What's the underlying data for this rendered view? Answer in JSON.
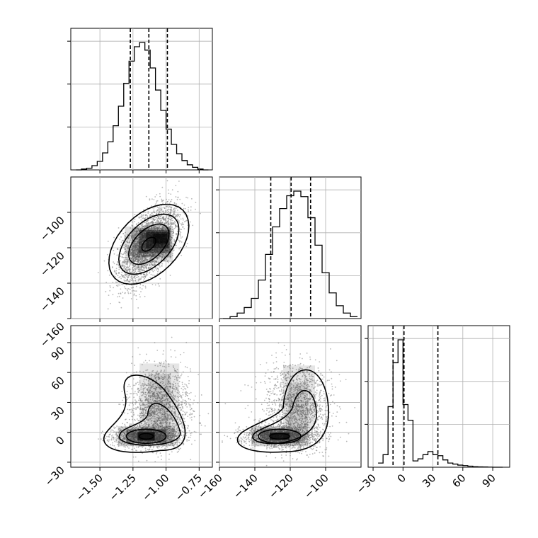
{
  "chart_data": {
    "type": "corner",
    "colors": {
      "line": "#000000",
      "grid": "#b0b0b0",
      "points": "#7f7f7f"
    },
    "grid": true,
    "parameters": [
      {
        "ticks": [
          -1.5,
          -1.25,
          -1.0,
          -0.75
        ],
        "tick_labels": [
          "−1.50",
          "−1.25",
          "−1.00",
          "−0.75"
        ],
        "range": [
          -1.72,
          -0.65
        ],
        "quantiles": [
          -1.27,
          -1.13,
          -0.99
        ]
      },
      {
        "ticks": [
          -160,
          -140,
          -120,
          -100
        ],
        "tick_labels": [
          "−160",
          "−140",
          "−120",
          "−100"
        ],
        "range": [
          -160,
          -80
        ],
        "quantiles": [
          -131,
          -119.5,
          -108.5
        ]
      },
      {
        "ticks": [
          -30,
          0,
          30,
          60,
          90
        ],
        "tick_labels": [
          "−30",
          "0",
          "30",
          "60",
          "90"
        ],
        "range": [
          -35,
          107
        ],
        "quantiles": [
          -10,
          1,
          35
        ]
      }
    ],
    "histograms": [
      {
        "param": 0,
        "bins": [
          -1.68,
          -1.64,
          -1.6,
          -1.56,
          -1.52,
          -1.48,
          -1.44,
          -1.4,
          -1.36,
          -1.32,
          -1.28,
          -1.24,
          -1.2,
          -1.16,
          -1.12,
          -1.08,
          -1.04,
          -1.0,
          -0.96,
          -0.92,
          -0.88,
          -0.84,
          -0.8,
          -0.76,
          -0.72,
          -0.68
        ],
        "counts": [
          0,
          1,
          2,
          5,
          10,
          20,
          33,
          52,
          75,
          102,
          128,
          145,
          150,
          141,
          120,
          94,
          70,
          48,
          30,
          19,
          11,
          6,
          3,
          1,
          0
        ]
      },
      {
        "param": 1,
        "bins": [
          -158,
          -154,
          -150,
          -146,
          -142,
          -138,
          -134,
          -130,
          -126,
          -122,
          -118,
          -114,
          -110,
          -106,
          -102,
          -98,
          -94,
          -90,
          -86,
          -82
        ],
        "counts": [
          0,
          2,
          6,
          12,
          22,
          42,
          70,
          100,
          120,
          134,
          139,
          133,
          110,
          80,
          50,
          28,
          14,
          6,
          2
        ]
      },
      {
        "param": 2,
        "bins": [
          -25,
          -20,
          -15,
          -10,
          -5,
          0,
          5,
          10,
          15,
          20,
          25,
          30,
          35,
          40,
          45,
          50,
          55,
          60,
          65,
          70,
          75,
          80,
          85,
          90,
          95,
          100
        ],
        "counts": [
          4,
          12,
          58,
          100,
          122,
          60,
          45,
          6,
          8,
          12,
          15,
          12,
          11,
          7,
          4,
          3,
          2,
          1.5,
          1,
          0.5,
          0.3,
          0.2,
          0.1,
          0,
          0
        ]
      }
    ],
    "correlations": [
      {
        "x_param": 0,
        "y_param": 1,
        "correlation": 0.6,
        "mode": [
          -1.13,
          -118
        ]
      },
      {
        "x_param": 0,
        "y_param": 2,
        "modes": [
          [
            -1.15,
            -4
          ],
          [
            -1.05,
            25
          ]
        ]
      },
      {
        "x_param": 1,
        "y_param": 2,
        "modes": [
          [
            -126,
            -4
          ],
          [
            -116,
            25
          ]
        ]
      }
    ]
  }
}
